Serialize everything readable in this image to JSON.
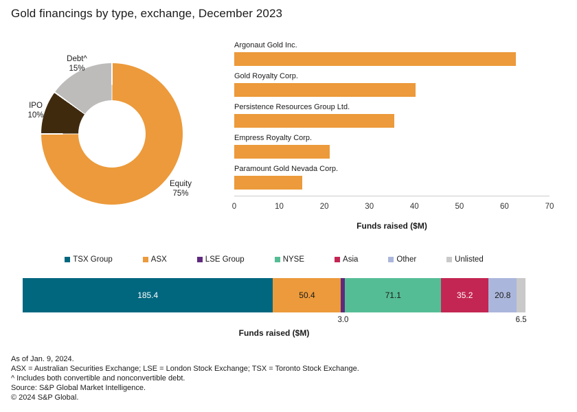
{
  "title": "Gold financings by type, exchange, December 2023",
  "accent_colors": {
    "orange": "#EC9A3B",
    "teal": "#00677F",
    "purple": "#602980",
    "green": "#55BD96",
    "crimson": "#C32652",
    "lavender": "#ABB6DC",
    "gray_unlisted": "#C9C9C9",
    "gray_donut": "#BDBCBB",
    "brown": "#402A0E",
    "axis_line": "#CCCCCC",
    "tick_text": "#333333"
  },
  "chart_data": [
    {
      "type": "pie",
      "subtype": "donut",
      "start_angle": "12 o'clock",
      "direction": "clockwise",
      "slices": [
        {
          "label": "Equity",
          "pct": 75,
          "pct_label": "75%",
          "color": "#EC9A3B"
        },
        {
          "label": "IPO",
          "pct": 10,
          "pct_label": "10%",
          "color": "#402A0E"
        },
        {
          "label": "Debt^",
          "pct": 15,
          "pct_label": "15%",
          "color": "#BDBCBB"
        }
      ]
    },
    {
      "type": "bar",
      "orientation": "horizontal",
      "categories": [
        "Argonaut Gold Inc.",
        "Gold Royalty Corp.",
        "Persistence Resources Group Ltd.",
        "Empress Royalty Corp.",
        "Paramount Gold Nevada Corp."
      ],
      "values": [
        62.6,
        40.2,
        35.6,
        21.2,
        15.1
      ],
      "bar_color": "#EC9A3B",
      "xlabel": "Funds raised ($M)",
      "xlim": [
        0,
        70
      ],
      "xticks": [
        "0",
        "10",
        "20",
        "30",
        "40",
        "50",
        "60",
        "70"
      ],
      "grid": "off",
      "legend": "none"
    },
    {
      "type": "bar",
      "subtype": "stacked",
      "orientation": "horizontal",
      "xlabel": "Funds raised ($M)",
      "legend_position": "top",
      "series": [
        {
          "name": "TSX Group",
          "value": 185.4,
          "label": "185.4",
          "color": "#00677F",
          "text": "#FFFFFF",
          "label_pos": "inside"
        },
        {
          "name": "ASX",
          "value": 50.4,
          "label": "50.4",
          "color": "#EC9A3B",
          "text": "#1A1A1A",
          "label_pos": "inside"
        },
        {
          "name": "LSE Group",
          "value": 3.0,
          "label": "3.0",
          "color": "#602980",
          "text": "#1A1A1A",
          "label_pos": "below"
        },
        {
          "name": "NYSE",
          "value": 71.1,
          "label": "71.1",
          "color": "#55BD96",
          "text": "#1A1A1A",
          "label_pos": "inside"
        },
        {
          "name": "Asia",
          "value": 35.2,
          "label": "35.2",
          "color": "#C32652",
          "text": "#FFFFFF",
          "label_pos": "inside"
        },
        {
          "name": "Other",
          "value": 20.8,
          "label": "20.8",
          "color": "#ABB6DC",
          "text": "#1A1A1A",
          "label_pos": "inside"
        },
        {
          "name": "Unlisted",
          "value": 6.5,
          "label": "6.5",
          "color": "#C9C9C9",
          "text": "#1A1A1A",
          "label_pos": "below"
        }
      ]
    }
  ],
  "footnotes": [
    "As of Jan. 9, 2024.",
    "ASX = Australian Securities Exchange; LSE = London Stock Exchange; TSX = Toronto Stock Exchange.",
    "^ Includes both convertible and nonconvertible debt.",
    "Source: S&P Global Market Intelligence.",
    "© 2024 S&P Global."
  ]
}
